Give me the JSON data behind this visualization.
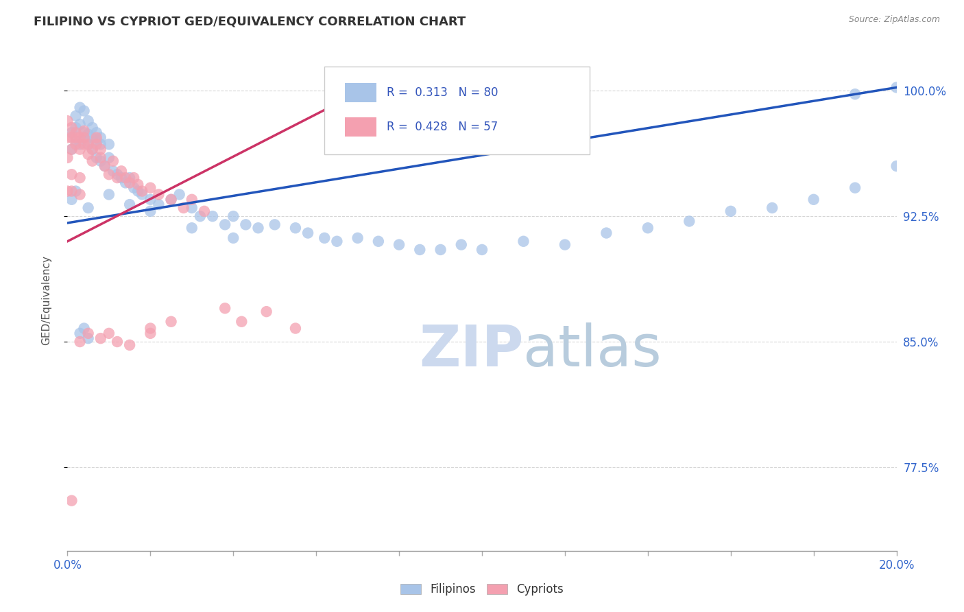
{
  "title": "FILIPINO VS CYPRIOT GED/EQUIVALENCY CORRELATION CHART",
  "source_text": "Source: ZipAtlas.com",
  "ylabel": "GED/Equivalency",
  "ytick_labels": [
    "100.0%",
    "92.5%",
    "85.0%",
    "77.5%"
  ],
  "ytick_values": [
    1.0,
    0.925,
    0.85,
    0.775
  ],
  "xmin": 0.0,
  "xmax": 0.2,
  "ymin": 0.725,
  "ymax": 1.025,
  "R_filipino": 0.313,
  "N_filipino": 80,
  "R_cypriot": 0.428,
  "N_cypriot": 57,
  "filipino_color": "#a8c4e8",
  "cypriot_color": "#f4a0b0",
  "filipino_line_color": "#2255bb",
  "cypriot_line_color": "#cc3366",
  "watermark_color": "#ccd9ee",
  "legend_label_filipino": "Filipinos",
  "legend_label_cypriot": "Cypriots",
  "fil_line_x0": 0.0,
  "fil_line_y0": 0.921,
  "fil_line_x1": 0.2,
  "fil_line_y1": 1.002,
  "cyp_line_x0": 0.0,
  "cyp_line_y0": 0.91,
  "cyp_line_x1": 0.075,
  "cyp_line_y1": 1.005,
  "filipino_x": [
    0.001,
    0.001,
    0.002,
    0.002,
    0.003,
    0.003,
    0.004,
    0.004,
    0.005,
    0.005,
    0.006,
    0.006,
    0.007,
    0.007,
    0.008,
    0.008,
    0.009,
    0.01,
    0.01,
    0.011,
    0.012,
    0.013,
    0.014,
    0.015,
    0.016,
    0.017,
    0.018,
    0.02,
    0.022,
    0.025,
    0.027,
    0.03,
    0.032,
    0.035,
    0.038,
    0.04,
    0.043,
    0.046,
    0.05,
    0.055,
    0.058,
    0.062,
    0.065,
    0.07,
    0.075,
    0.08,
    0.085,
    0.09,
    0.095,
    0.1,
    0.11,
    0.12,
    0.13,
    0.14,
    0.15,
    0.16,
    0.17,
    0.18,
    0.19,
    0.2,
    0.002,
    0.003,
    0.004,
    0.005,
    0.006,
    0.007,
    0.008,
    0.003,
    0.004,
    0.005,
    0.19,
    0.2,
    0.001,
    0.002,
    0.005,
    0.01,
    0.015,
    0.02,
    0.03,
    0.04
  ],
  "filipino_y": [
    0.965,
    0.975,
    0.97,
    0.978,
    0.968,
    0.98,
    0.972,
    0.975,
    0.968,
    0.974,
    0.965,
    0.972,
    0.96,
    0.97,
    0.958,
    0.968,
    0.955,
    0.96,
    0.968,
    0.952,
    0.95,
    0.948,
    0.945,
    0.948,
    0.942,
    0.94,
    0.938,
    0.935,
    0.932,
    0.935,
    0.938,
    0.93,
    0.925,
    0.925,
    0.92,
    0.925,
    0.92,
    0.918,
    0.92,
    0.918,
    0.915,
    0.912,
    0.91,
    0.912,
    0.91,
    0.908,
    0.905,
    0.905,
    0.908,
    0.905,
    0.91,
    0.908,
    0.915,
    0.918,
    0.922,
    0.928,
    0.93,
    0.935,
    0.942,
    0.955,
    0.985,
    0.99,
    0.988,
    0.982,
    0.978,
    0.975,
    0.972,
    0.855,
    0.858,
    0.852,
    0.998,
    1.002,
    0.935,
    0.94,
    0.93,
    0.938,
    0.932,
    0.928,
    0.918,
    0.912
  ],
  "cypriot_x": [
    0.0,
    0.0,
    0.0,
    0.001,
    0.001,
    0.001,
    0.002,
    0.002,
    0.003,
    0.003,
    0.004,
    0.004,
    0.005,
    0.005,
    0.006,
    0.006,
    0.007,
    0.007,
    0.008,
    0.008,
    0.009,
    0.01,
    0.011,
    0.012,
    0.013,
    0.014,
    0.015,
    0.016,
    0.017,
    0.018,
    0.02,
    0.022,
    0.025,
    0.028,
    0.03,
    0.033,
    0.038,
    0.042,
    0.048,
    0.055,
    0.0,
    0.001,
    0.001,
    0.002,
    0.003,
    0.003,
    0.004,
    0.02,
    0.025,
    0.003,
    0.005,
    0.008,
    0.01,
    0.012,
    0.015,
    0.02,
    0.001
  ],
  "cypriot_y": [
    0.972,
    0.982,
    0.96,
    0.978,
    0.972,
    0.965,
    0.968,
    0.975,
    0.965,
    0.972,
    0.972,
    0.976,
    0.968,
    0.962,
    0.958,
    0.965,
    0.968,
    0.972,
    0.96,
    0.965,
    0.955,
    0.95,
    0.958,
    0.948,
    0.952,
    0.948,
    0.945,
    0.948,
    0.944,
    0.94,
    0.942,
    0.938,
    0.935,
    0.93,
    0.935,
    0.928,
    0.87,
    0.862,
    0.868,
    0.858,
    0.94,
    0.94,
    0.95,
    0.972,
    0.938,
    0.948,
    0.968,
    0.858,
    0.862,
    0.85,
    0.855,
    0.852,
    0.855,
    0.85,
    0.848,
    0.855,
    0.755
  ]
}
